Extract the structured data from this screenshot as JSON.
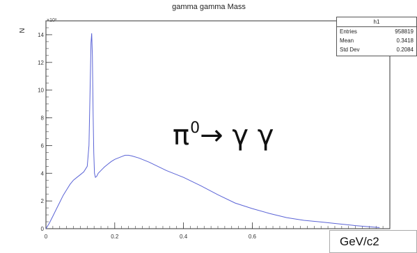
{
  "chart_data": {
    "type": "line",
    "title": "gamma gamma Mass",
    "ylabel": "N",
    "xlabel": "GeV/c2",
    "y_multiplier_label": "×10³",
    "xlim": [
      0,
      1.0
    ],
    "ylim": [
      0,
      15
    ],
    "x_tick_labels": [
      "0",
      "0.2",
      "0.4",
      "0.6"
    ],
    "x_ticks": [
      0,
      0.2,
      0.4,
      0.6
    ],
    "y_tick_labels": [
      "0",
      "2",
      "4",
      "6",
      "8",
      "10",
      "12",
      "14"
    ],
    "y_ticks": [
      0,
      2,
      4,
      6,
      8,
      10,
      12,
      14
    ],
    "series": [
      {
        "x": [
          0,
          0.01,
          0.02,
          0.03,
          0.04,
          0.05,
          0.06,
          0.07,
          0.08,
          0.09,
          0.1,
          0.11,
          0.12,
          0.125,
          0.128,
          0.131,
          0.133,
          0.135,
          0.137,
          0.139,
          0.141,
          0.144,
          0.148,
          0.152,
          0.16,
          0.17,
          0.18,
          0.19,
          0.2,
          0.21,
          0.22,
          0.23,
          0.24,
          0.25,
          0.27,
          0.3,
          0.35,
          0.4,
          0.45,
          0.5,
          0.55,
          0.6,
          0.65,
          0.7,
          0.75,
          0.8,
          0.85,
          0.9,
          0.95,
          0.97
        ],
        "y": [
          0,
          0.4,
          0.9,
          1.4,
          1.9,
          2.4,
          2.8,
          3.2,
          3.5,
          3.7,
          3.9,
          4.1,
          4.5,
          6.0,
          9.5,
          13.4,
          14.1,
          12.5,
          8.5,
          5.5,
          4.0,
          3.7,
          3.8,
          4.0,
          4.2,
          4.45,
          4.65,
          4.85,
          5.0,
          5.1,
          5.2,
          5.3,
          5.3,
          5.25,
          5.1,
          4.8,
          4.2,
          3.7,
          3.1,
          2.45,
          1.85,
          1.45,
          1.1,
          0.8,
          0.6,
          0.48,
          0.35,
          0.22,
          0.12,
          0.08
        ]
      }
    ],
    "line_color": "#5a63d6"
  },
  "stats_box": {
    "title": "h1",
    "rows": [
      {
        "label": "Entries",
        "value": "958819"
      },
      {
        "label": "Mean",
        "value": "0.3418"
      },
      {
        "label": "Std Dev",
        "value": "0.2084"
      }
    ]
  },
  "annotation": {
    "particle": "π",
    "superscript": "0",
    "decay": "→ γ γ"
  }
}
